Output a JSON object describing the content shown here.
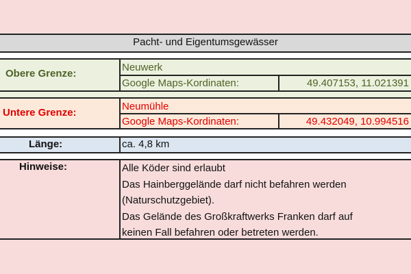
{
  "title": "Pacht- und Eigentumsgewässer",
  "obere": {
    "label": "Obere Grenze:",
    "name": "Neuwerk",
    "coord_label": "Google Maps-Kordinaten:",
    "coords": "49.407153, 11.021391"
  },
  "untere": {
    "label": "Untere Grenze:",
    "name": "Neumühle",
    "coord_label": "Google Maps-Kordinaten:",
    "coords": "49.432049, 10.994516"
  },
  "laenge": {
    "label": "Länge:",
    "value": "ca. 4,8 km"
  },
  "hinweise": {
    "label": "Hinweise:",
    "lines": [
      "Alle Köder sind erlaubt",
      "Das Hainberggelände darf nicht befahren werden",
      "(Naturschutzgebiet).",
      "Das Gelände des Großkraftwerks Franken darf auf",
      "keinen Fall befahren oder betreten werden."
    ]
  },
  "colors": {
    "green": "#4f6228",
    "red": "#e00000",
    "header_bg": "#d9d9d9",
    "green_bg": "#ebf1de",
    "red_bg": "#fde9d9",
    "blue_bg": "#dce6f1",
    "pink_bg": "#f8dcdc"
  }
}
